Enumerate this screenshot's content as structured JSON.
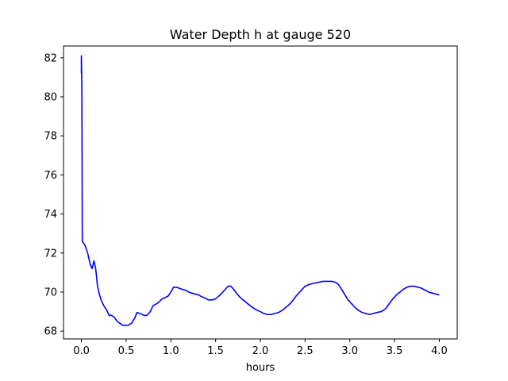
{
  "chart_data": {
    "type": "line",
    "title": "Water Depth h at gauge 520",
    "xlabel": "hours",
    "ylabel": "",
    "xlim": [
      -0.2,
      4.2
    ],
    "ylim": [
      67.6,
      82.6
    ],
    "xticks": [
      0.0,
      0.5,
      1.0,
      1.5,
      2.0,
      2.5,
      3.0,
      3.5,
      4.0
    ],
    "xtick_labels": [
      "0.0",
      "0.5",
      "1.0",
      "1.5",
      "2.0",
      "2.5",
      "3.0",
      "3.5",
      "4.0"
    ],
    "yticks": [
      68,
      70,
      72,
      74,
      76,
      78,
      80,
      82
    ],
    "ytick_labels": [
      "68",
      "70",
      "72",
      "74",
      "76",
      "78",
      "80",
      "82"
    ],
    "grid": false,
    "series": [
      {
        "color": "#0000ff",
        "x": [
          0.0,
          0.0,
          0.005,
          0.008,
          0.01,
          0.04,
          0.07,
          0.1,
          0.12,
          0.14,
          0.16,
          0.18,
          0.2,
          0.22,
          0.25,
          0.28,
          0.31,
          0.34,
          0.37,
          0.4,
          0.43,
          0.46,
          0.49,
          0.52,
          0.56,
          0.6,
          0.62,
          0.66,
          0.7,
          0.73,
          0.77,
          0.8,
          0.84,
          0.87,
          0.9,
          0.93,
          0.97,
          1.0,
          1.03,
          1.06,
          1.09,
          1.12,
          1.16,
          1.2,
          1.23,
          1.27,
          1.31,
          1.35,
          1.38,
          1.42,
          1.46,
          1.5,
          1.55,
          1.6,
          1.64,
          1.67,
          1.7,
          1.74,
          1.78,
          1.82,
          1.86,
          1.9,
          1.95,
          2.0,
          2.04,
          2.08,
          2.12,
          2.16,
          2.2,
          2.24,
          2.28,
          2.32,
          2.36,
          2.4,
          2.45,
          2.5,
          2.55,
          2.6,
          2.65,
          2.7,
          2.75,
          2.8,
          2.84,
          2.87,
          2.9,
          2.94,
          2.98,
          3.02,
          3.06,
          3.1,
          3.14,
          3.18,
          3.22,
          3.26,
          3.3,
          3.35,
          3.4,
          3.44,
          3.48,
          3.52,
          3.56,
          3.6,
          3.64,
          3.68,
          3.72,
          3.76,
          3.8,
          3.84,
          3.88,
          3.92,
          3.96,
          4.0
        ],
        "y": [
          81.2,
          82.1,
          80.5,
          76.0,
          72.6,
          72.4,
          72.0,
          71.4,
          71.2,
          71.6,
          71.2,
          70.3,
          69.9,
          69.6,
          69.3,
          69.1,
          68.8,
          68.8,
          68.7,
          68.5,
          68.4,
          68.3,
          68.3,
          68.3,
          68.4,
          68.7,
          68.95,
          68.9,
          68.8,
          68.8,
          69.0,
          69.3,
          69.4,
          69.5,
          69.65,
          69.7,
          69.8,
          70.0,
          70.25,
          70.25,
          70.2,
          70.15,
          70.1,
          70.0,
          69.95,
          69.9,
          69.85,
          69.75,
          69.7,
          69.6,
          69.6,
          69.65,
          69.85,
          70.1,
          70.3,
          70.3,
          70.15,
          69.9,
          69.7,
          69.55,
          69.4,
          69.25,
          69.1,
          69.0,
          68.9,
          68.85,
          68.85,
          68.9,
          68.95,
          69.05,
          69.2,
          69.35,
          69.55,
          69.8,
          70.05,
          70.3,
          70.4,
          70.45,
          70.5,
          70.55,
          70.55,
          70.55,
          70.5,
          70.4,
          70.2,
          69.9,
          69.6,
          69.4,
          69.2,
          69.05,
          68.95,
          68.9,
          68.85,
          68.9,
          68.95,
          69.0,
          69.15,
          69.4,
          69.65,
          69.85,
          70.0,
          70.15,
          70.25,
          70.3,
          70.3,
          70.25,
          70.2,
          70.1,
          70.0,
          69.95,
          69.9,
          69.85
        ]
      }
    ]
  }
}
